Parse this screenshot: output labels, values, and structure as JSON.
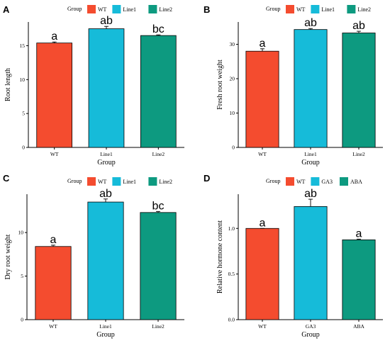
{
  "chart_data": [
    {
      "type": "bar",
      "panel": "A",
      "legend_title": "Group",
      "legend_placement": "top",
      "categories": [
        "WT",
        "Line1",
        "Line2"
      ],
      "values": [
        15.4,
        17.5,
        16.5
      ],
      "errors": [
        0.15,
        0.35,
        0.1
      ],
      "significance": [
        "a",
        "ab",
        "bc"
      ],
      "colors": [
        "#f44c2f",
        "#16bbd9",
        "#0d9a80"
      ],
      "xlabel": "Group",
      "ylabel": "Root length",
      "ylim": [
        0,
        18.5
      ],
      "yticks": [
        0,
        5,
        10,
        15
      ],
      "ytick_labels": [
        "0",
        "5",
        "10",
        "15"
      ],
      "grid": false
    },
    {
      "type": "bar",
      "panel": "B",
      "legend_title": "Group",
      "legend_placement": "top",
      "categories": [
        "WT",
        "Line1",
        "Line2"
      ],
      "values": [
        28.0,
        34.3,
        33.3
      ],
      "errors": [
        0.7,
        0.3,
        0.5
      ],
      "significance": [
        "a",
        "ab",
        "ab"
      ],
      "colors": [
        "#f44c2f",
        "#16bbd9",
        "#0d9a80"
      ],
      "xlabel": "Group",
      "ylabel": "Fresh root weight",
      "ylim": [
        0,
        36.5
      ],
      "yticks": [
        0,
        10,
        20,
        30
      ],
      "ytick_labels": [
        "0",
        "10",
        "20",
        "30"
      ],
      "grid": false
    },
    {
      "type": "bar",
      "panel": "C",
      "legend_title": "Group",
      "legend_placement": "top",
      "categories": [
        "WT",
        "Line1",
        "Line2"
      ],
      "values": [
        8.4,
        13.5,
        12.3
      ],
      "errors": [
        0.15,
        0.35,
        0.12
      ],
      "significance": [
        "a",
        "ab",
        "bc"
      ],
      "colors": [
        "#f44c2f",
        "#16bbd9",
        "#0d9a80"
      ],
      "xlabel": "Group",
      "ylabel": "Dry root weight",
      "ylim": [
        0,
        14.4
      ],
      "yticks": [
        0,
        5,
        10
      ],
      "ytick_labels": [
        "0",
        "5",
        "10"
      ],
      "grid": false
    },
    {
      "type": "bar",
      "panel": "D",
      "legend_title": "Group",
      "legend_placement": "top",
      "categories": [
        "WT",
        "GA3",
        "ABA"
      ],
      "values": [
        1.0,
        1.24,
        0.875
      ],
      "errors": [
        0.0,
        0.08,
        0.008
      ],
      "significance": [
        "a",
        "ab",
        "a"
      ],
      "colors": [
        "#f44c2f",
        "#16bbd9",
        "#0d9a80"
      ],
      "xlabel": "Group",
      "ylabel": "Relative hormone content",
      "ylim": [
        0,
        1.375
      ],
      "yticks": [
        0,
        0.5,
        1.0
      ],
      "ytick_labels": [
        "0.0",
        "0.5",
        "1.0"
      ],
      "grid": false
    }
  ]
}
